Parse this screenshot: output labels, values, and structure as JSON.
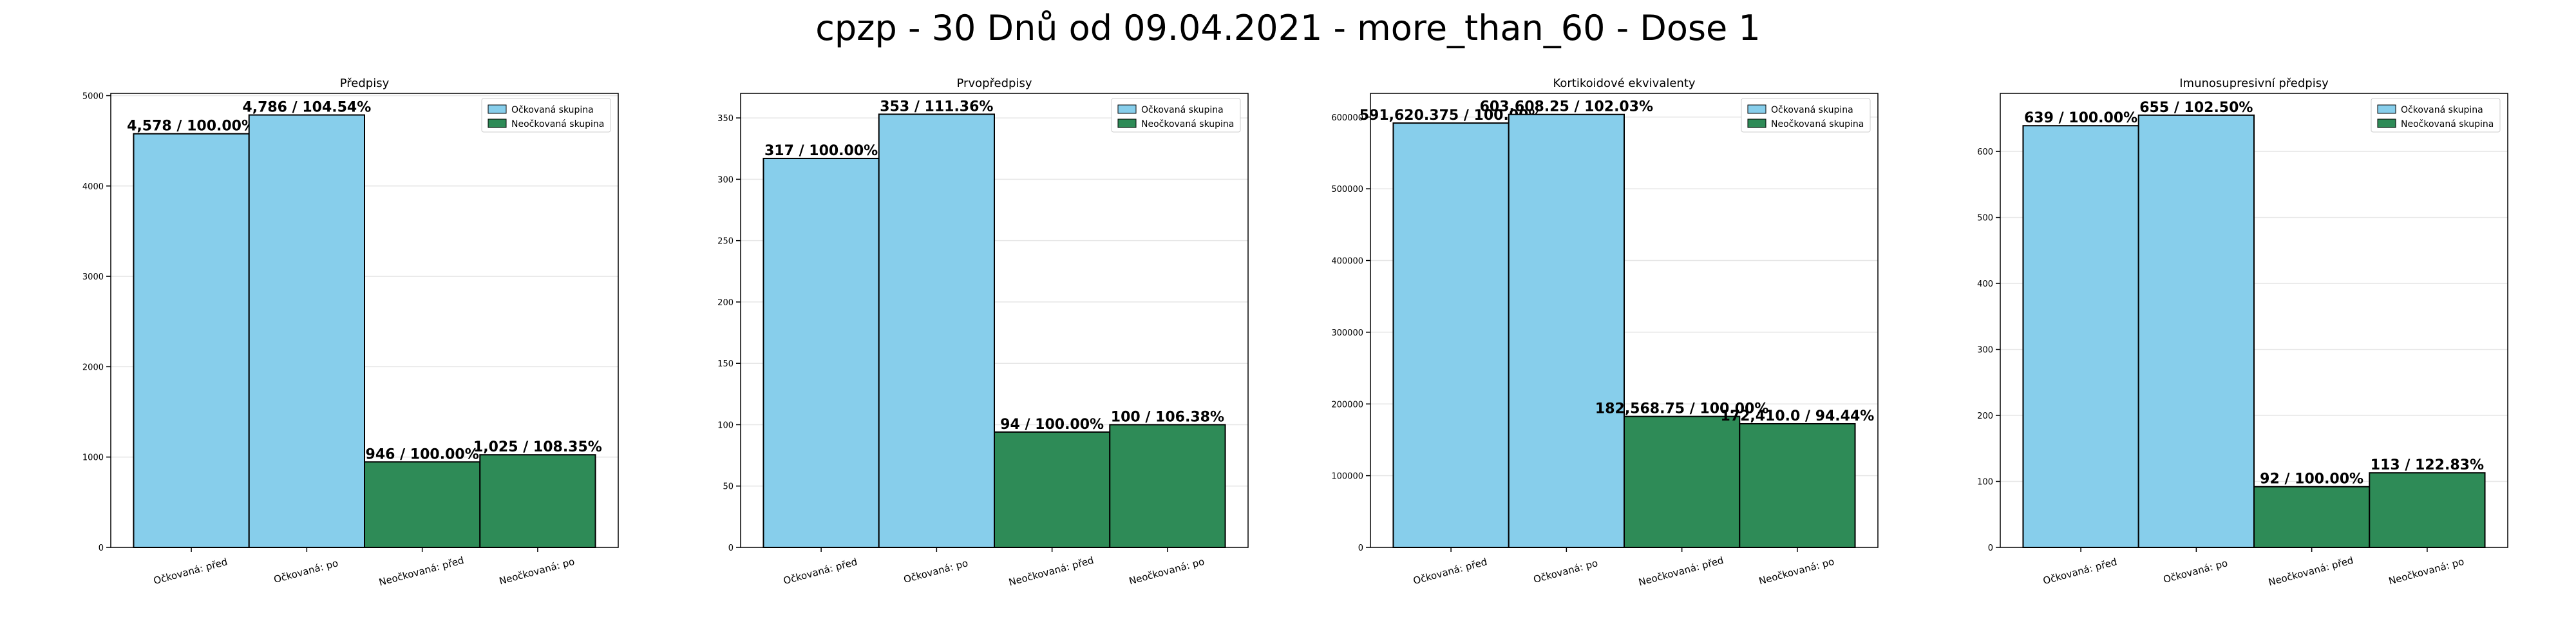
{
  "figure_title": "cpzp - 30 Dnů od 09.04.2021 - more_than_60 - Dose 1",
  "colors": {
    "vaccinated": "#87ceeb",
    "unvaccinated": "#2e8b57",
    "edge": "#000000",
    "grid": "#e6e6e6"
  },
  "legend": {
    "placement": "top-right",
    "entries": [
      {
        "label": "Očkovaná skupina",
        "color": "#87ceeb"
      },
      {
        "label": "Neočkovaná skupina",
        "color": "#2e8b57"
      }
    ]
  },
  "chart_data": [
    {
      "type": "bar",
      "title": "Předpisy",
      "categories": [
        "Očkovaná: před",
        "Očkovaná: po",
        "Neočkovaná: před",
        "Neočkovaná: po"
      ],
      "values": [
        4578,
        4786,
        946,
        1025
      ],
      "bar_labels": [
        "4,578 / 100.00%",
        "4,786 / 104.54%",
        "946 / 100.00%",
        "1,025 / 108.35%"
      ],
      "groups": [
        "Očkovaná skupina",
        "Očkovaná skupina",
        "Neočkovaná skupina",
        "Neočkovaná skupina"
      ],
      "ylim": [
        0,
        5025
      ],
      "yticks": [
        0,
        1000,
        2000,
        3000,
        4000,
        5000
      ],
      "ytick_labels": [
        "0",
        "1000",
        "2000",
        "3000",
        "4000",
        "5000"
      ],
      "grid": "horizontal"
    },
    {
      "type": "bar",
      "title": "Prvopředpisy",
      "categories": [
        "Očkovaná: před",
        "Očkovaná: po",
        "Neočkovaná: před",
        "Neočkovaná: po"
      ],
      "values": [
        317,
        353,
        94,
        100
      ],
      "bar_labels": [
        "317 / 100.00%",
        "353 / 111.36%",
        "94 / 100.00%",
        "100 / 106.38%"
      ],
      "groups": [
        "Očkovaná skupina",
        "Očkovaná skupina",
        "Neočkovaná skupina",
        "Neočkovaná skupina"
      ],
      "ylim": [
        0,
        370
      ],
      "yticks": [
        0,
        50,
        100,
        150,
        200,
        250,
        300,
        350
      ],
      "ytick_labels": [
        "0",
        "50",
        "100",
        "150",
        "200",
        "250",
        "300",
        "350"
      ],
      "grid": "horizontal"
    },
    {
      "type": "bar",
      "title": "Kortikoidové ekvivalenty",
      "categories": [
        "Očkovaná: před",
        "Očkovaná: po",
        "Neočkovaná: před",
        "Neočkovaná: po"
      ],
      "values": [
        591620.375,
        603608.25,
        182568.75,
        172410.0
      ],
      "bar_labels": [
        "591,620.375 / 100.00%",
        "603,608.25 / 102.03%",
        "182,568.75 / 100.00%",
        "172,410.0 / 94.44%"
      ],
      "groups": [
        "Očkovaná skupina",
        "Očkovaná skupina",
        "Neočkovaná skupina",
        "Neočkovaná skupina"
      ],
      "ylim": [
        0,
        633000
      ],
      "yticks": [
        0,
        100000,
        200000,
        300000,
        400000,
        500000,
        600000
      ],
      "ytick_labels": [
        "0",
        "100000",
        "200000",
        "300000",
        "400000",
        "500000",
        "600000"
      ],
      "grid": "horizontal"
    },
    {
      "type": "bar",
      "title": "Imunosupresivní předpisy",
      "categories": [
        "Očkovaná: před",
        "Očkovaná: po",
        "Neočkovaná: před",
        "Neočkovaná: po"
      ],
      "values": [
        639,
        655,
        92,
        113
      ],
      "bar_labels": [
        "639 / 100.00%",
        "655 / 102.50%",
        "92 / 100.00%",
        "113 / 122.83%"
      ],
      "groups": [
        "Očkovaná skupina",
        "Očkovaná skupina",
        "Neočkovaná skupina",
        "Neočkovaná skupina"
      ],
      "ylim": [
        0,
        688
      ],
      "yticks": [
        0,
        100,
        200,
        300,
        400,
        500,
        600
      ],
      "ytick_labels": [
        "0",
        "100",
        "200",
        "300",
        "400",
        "500",
        "600"
      ],
      "grid": "horizontal"
    }
  ]
}
